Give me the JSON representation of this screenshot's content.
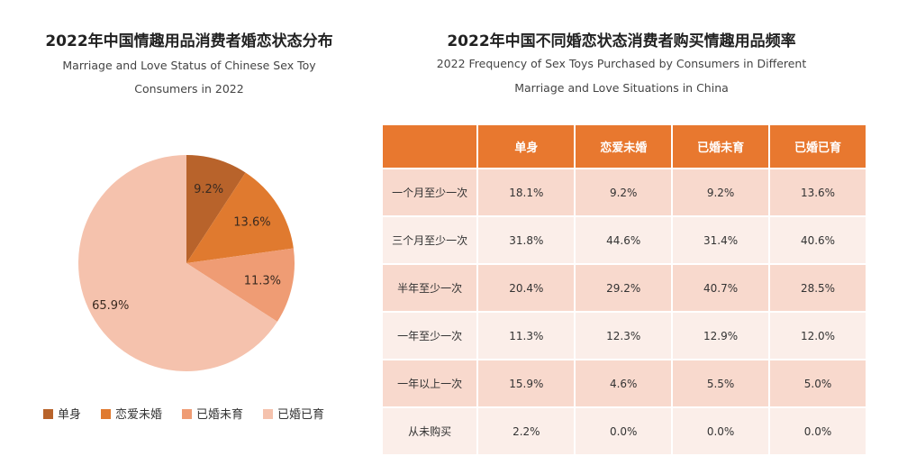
{
  "left": {
    "title": "2022年中国情趣用品消费者婚恋状态分布",
    "subtitle_line1": "Marriage and Love Status of Chinese Sex Toy",
    "subtitle_line2": "Consumers in 2022"
  },
  "right": {
    "title": "2022年中国不同婚恋状态消费者购买情趣用品频率",
    "subtitle_line1": "2022 Frequency of Sex Toys Purchased by Consumers in Different",
    "subtitle_line2": "Marriage and Love Situations in China"
  },
  "chart_data": [
    {
      "type": "pie",
      "categories": [
        "单身",
        "恋爱未婚",
        "已婚未育",
        "已婚已育"
      ],
      "values": [
        9.2,
        13.6,
        11.3,
        65.9
      ],
      "labels": [
        "9.2%",
        "13.6%",
        "11.3%",
        "65.9%"
      ],
      "colors": [
        "#b8632b",
        "#e07a2f",
        "#ef9c74",
        "#f5c2ad"
      ],
      "legend": "bottom"
    },
    {
      "type": "table",
      "columns": [
        "",
        "单身",
        "恋爱未婚",
        "已婚未育",
        "已婚已育"
      ],
      "rows": [
        [
          "一个月至少一次",
          "18.1%",
          "9.2%",
          "9.2%",
          "13.6%"
        ],
        [
          "三个月至少一次",
          "31.8%",
          "44.6%",
          "31.4%",
          "40.6%"
        ],
        [
          "半年至少一次",
          "20.4%",
          "29.2%",
          "40.7%",
          "28.5%"
        ],
        [
          "一年至少一次",
          "11.3%",
          "12.3%",
          "12.9%",
          "12.0%"
        ],
        [
          "一年以上一次",
          "15.9%",
          "4.6%",
          "5.5%",
          "5.0%"
        ],
        [
          "从未购买",
          "2.2%",
          "0.0%",
          "0.0%",
          "0.0%"
        ]
      ],
      "header_color": "#e8782f"
    }
  ]
}
